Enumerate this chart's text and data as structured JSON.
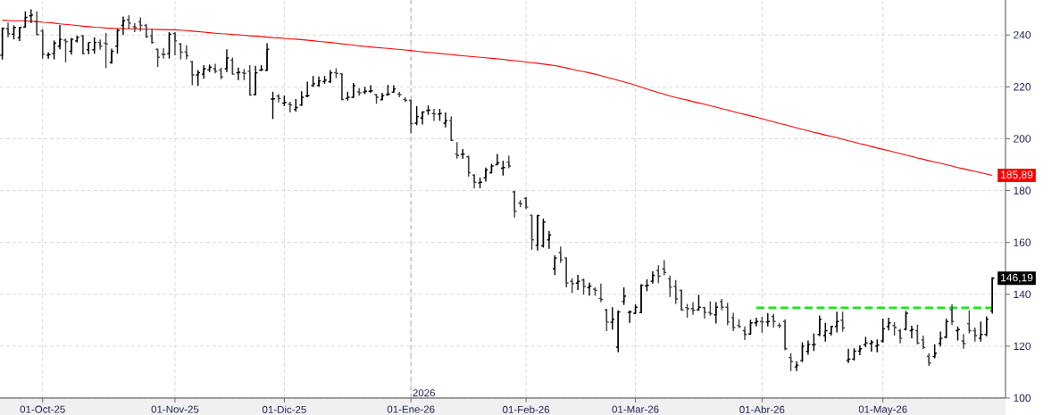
{
  "chart_data": {
    "type": "candlestick",
    "categories": [
      null,
      null,
      null,
      null,
      null,
      null,
      null,
      "01-Oct-25",
      null,
      null,
      null,
      null,
      null,
      null,
      null,
      null,
      null,
      null,
      null,
      null,
      null,
      null,
      null,
      null,
      null,
      null,
      null,
      null,
      null,
      null,
      "01-Nov-25",
      null,
      null,
      null,
      null,
      null,
      null,
      null,
      null,
      null,
      null,
      null,
      null,
      null,
      null,
      null,
      null,
      null,
      null,
      "01-Dic-25",
      null,
      null,
      null,
      null,
      null,
      null,
      null,
      null,
      null,
      null,
      null,
      null,
      null,
      null,
      null,
      null,
      null,
      null,
      null,
      null,
      null,
      "01-Ene-26",
      null,
      null,
      null,
      null,
      null,
      null,
      null,
      null,
      null,
      null,
      null,
      null,
      null,
      null,
      null,
      null,
      null,
      null,
      null,
      "01-Feb-26",
      null,
      null,
      null,
      null,
      null,
      null,
      null,
      null,
      null,
      null,
      null,
      null,
      null,
      null,
      null,
      null,
      null,
      null,
      "01-Mar-26",
      null,
      null,
      null,
      null,
      null,
      null,
      null,
      null,
      null,
      null,
      null,
      null,
      null,
      null,
      null,
      null,
      null,
      null,
      null,
      null,
      null,
      "01-Abr-26",
      null,
      null,
      null,
      null,
      null,
      null,
      null,
      null,
      null,
      null,
      null,
      null,
      null,
      null,
      null,
      null,
      null,
      null,
      null,
      null,
      "01-May-26",
      null,
      null,
      null,
      null,
      null,
      null,
      null,
      null,
      null,
      null,
      null,
      null,
      null,
      null,
      null,
      null,
      null,
      null,
      null
    ],
    "ohlc": [
      [
        232.2,
        242.9,
        230.5,
        242.5
      ],
      [
        242.5,
        244.8,
        239.1,
        240.5
      ],
      [
        240.3,
        243.7,
        238.3,
        242.9
      ],
      [
        238.9,
        243.1,
        237.7,
        242.9
      ],
      [
        243.1,
        249.1,
        242.9,
        246.8
      ],
      [
        247.4,
        249.9,
        244.6,
        247.7
      ],
      [
        245.1,
        249.1,
        239.8,
        240.2
      ],
      [
        241.5,
        242.3,
        230.9,
        232.6
      ],
      [
        232.2,
        233.4,
        230.9,
        232.4
      ],
      [
        232.8,
        237.9,
        230.6,
        236.9
      ],
      [
        235.7,
        243.9,
        234.5,
        238.3
      ],
      [
        238.0,
        238.6,
        229.5,
        237.4
      ],
      [
        233.7,
        238.9,
        232.4,
        238.3
      ],
      [
        237.7,
        239.8,
        237.1,
        239.1
      ],
      [
        239.7,
        240.0,
        232.6,
        232.8
      ],
      [
        234.3,
        237.1,
        232.6,
        237.1
      ],
      [
        234.3,
        239.1,
        232.8,
        237.1
      ],
      [
        237.1,
        238.3,
        234.3,
        235.7
      ],
      [
        236.8,
        240.8,
        227.2,
        236.6
      ],
      [
        229.4,
        234.7,
        228.9,
        233.7
      ],
      [
        235.7,
        242.5,
        232.8,
        241.7
      ],
      [
        243.7,
        247.1,
        240.0,
        245.5
      ],
      [
        245.9,
        247.6,
        242.3,
        244.6
      ],
      [
        243.2,
        244.6,
        241.1,
        242.9
      ],
      [
        245.1,
        246.8,
        241.4,
        243.7
      ],
      [
        243.7,
        244.3,
        238.9,
        239.4
      ],
      [
        239.7,
        242.3,
        236.6,
        237.1
      ],
      [
        234.5,
        234.7,
        227.7,
        231.4
      ],
      [
        232.6,
        235.0,
        230.9,
        232.5
      ],
      [
        232.8,
        241.1,
        230.9,
        240.3
      ],
      [
        240.6,
        241.1,
        232.2,
        237.7
      ],
      [
        236.6,
        236.8,
        230.6,
        233.4
      ],
      [
        233.5,
        236.0,
        230.6,
        232.0
      ],
      [
        229.7,
        230.0,
        220.6,
        224.6
      ],
      [
        224.6,
        226.5,
        220.4,
        225.5
      ],
      [
        224.9,
        228.4,
        223.1,
        227.0
      ],
      [
        226.6,
        228.6,
        225.7,
        227.6
      ],
      [
        227.0,
        228.9,
        225.2,
        226.0
      ],
      [
        226.5,
        227.4,
        222.9,
        223.8
      ],
      [
        227.0,
        234.5,
        225.7,
        231.1
      ],
      [
        230.3,
        231.3,
        224.8,
        224.9
      ],
      [
        225.4,
        227.4,
        222.6,
        225.6
      ],
      [
        225.4,
        226.9,
        222.6,
        225.2
      ],
      [
        226.0,
        228.4,
        216.6,
        216.9
      ],
      [
        217.0,
        228.1,
        216.9,
        225.4
      ],
      [
        226.5,
        228.4,
        226.1,
        226.6
      ],
      [
        226.4,
        236.8,
        226.1,
        234.5
      ],
      [
        215.3,
        218.1,
        207.6,
        215.4
      ],
      [
        216.5,
        217.2,
        214.0,
        215.5
      ],
      [
        213.7,
        216.6,
        212.6,
        214.0
      ],
      [
        213.3,
        214.3,
        210.1,
        213.0
      ],
      [
        211.3,
        215.3,
        210.5,
        212.0
      ],
      [
        213.0,
        218.3,
        212.6,
        216.0
      ],
      [
        216.5,
        222.0,
        216.0,
        216.6
      ],
      [
        220.5,
        224.2,
        220.0,
        221.2
      ],
      [
        220.5,
        224.0,
        220.0,
        222.3
      ],
      [
        222.0,
        224.2,
        221.2,
        222.6
      ],
      [
        222.0,
        226.5,
        221.5,
        225.4
      ],
      [
        225.5,
        227.2,
        223.4,
        225.2
      ],
      [
        225.0,
        225.2,
        214.9,
        215.1
      ],
      [
        215.5,
        218.1,
        214.7,
        216.0
      ],
      [
        216.0,
        221.5,
        215.8,
        220.5
      ],
      [
        218.1,
        219.5,
        216.6,
        217.7
      ],
      [
        218.0,
        220.0,
        217.2,
        218.3
      ],
      [
        218.3,
        220.6,
        217.7,
        218.5
      ],
      [
        217.0,
        217.2,
        213.5,
        216.0
      ],
      [
        215.0,
        217.7,
        214.9,
        216.6
      ],
      [
        217.0,
        220.8,
        216.6,
        217.2
      ],
      [
        218.0,
        220.6,
        217.7,
        219.2
      ],
      [
        217.2,
        218.1,
        216.0,
        217.0
      ],
      [
        215.1,
        216.0,
        214.3,
        214.8
      ],
      [
        214.8,
        215.1,
        202.1,
        205.8
      ],
      [
        206.0,
        212.6,
        205.2,
        208.6
      ],
      [
        208.0,
        210.6,
        205.5,
        210.3
      ],
      [
        210.9,
        212.8,
        209.2,
        211.0
      ],
      [
        209.7,
        211.5,
        206.9,
        209.5
      ],
      [
        209.5,
        211.5,
        206.9,
        209.7
      ],
      [
        206.0,
        210.1,
        204.4,
        207.0
      ],
      [
        207.0,
        208.6,
        199.1,
        199.4
      ],
      [
        194.1,
        198.7,
        192.3,
        193.5
      ],
      [
        194.0,
        196.0,
        192.3,
        194.1
      ],
      [
        193.0,
        193.5,
        185.4,
        186.9
      ],
      [
        186.0,
        186.3,
        180.9,
        183.2
      ],
      [
        183.0,
        185.0,
        180.9,
        183.2
      ],
      [
        184.9,
        188.9,
        183.5,
        188.0
      ],
      [
        186.9,
        190.3,
        186.6,
        189.5
      ],
      [
        190.0,
        194.1,
        189.8,
        190.7
      ],
      [
        188.6,
        191.5,
        185.8,
        188.9
      ],
      [
        191.0,
        193.4,
        188.6,
        189.5
      ],
      [
        179.5,
        179.9,
        169.6,
        172.0
      ],
      [
        175.2,
        176.3,
        173.6,
        174.9
      ],
      [
        177.0,
        177.4,
        172.9,
        173.6
      ],
      [
        170.5,
        170.6,
        157.2,
        161.0
      ],
      [
        158.9,
        170.6,
        156.9,
        170.4
      ],
      [
        158.7,
        169.2,
        158.0,
        167.9
      ],
      [
        161.0,
        164.4,
        157.6,
        162.9
      ],
      [
        149.8,
        155.0,
        147.5,
        154.0
      ],
      [
        156.1,
        158.4,
        152.1,
        153.2
      ],
      [
        154.0,
        154.2,
        142.7,
        144.3
      ],
      [
        145.0,
        146.2,
        140.5,
        144.1
      ],
      [
        144.3,
        147.5,
        141.6,
        145.0
      ],
      [
        145.5,
        146.1,
        139.9,
        143.0
      ],
      [
        142.6,
        144.5,
        139.5,
        143.2
      ],
      [
        142.0,
        142.7,
        139.5,
        141.5
      ],
      [
        138.4,
        144.1,
        137.0,
        138.0
      ],
      [
        134.0,
        134.4,
        125.8,
        129.3
      ],
      [
        129.2,
        135.0,
        126.4,
        130.4
      ],
      [
        119.6,
        133.8,
        117.6,
        133.2
      ],
      [
        137.2,
        142.7,
        135.9,
        139.3
      ],
      [
        133.0,
        133.8,
        129.0,
        133.2
      ],
      [
        132.7,
        136.1,
        132.5,
        135.0
      ],
      [
        133.0,
        143.9,
        132.7,
        143.5
      ],
      [
        143.3,
        145.8,
        141.2,
        143.5
      ],
      [
        145.0,
        148.9,
        144.1,
        147.3
      ],
      [
        149.2,
        151.2,
        144.3,
        147.0
      ],
      [
        149.8,
        153.2,
        147.3,
        148.4
      ],
      [
        146.0,
        147.2,
        139.0,
        142.7
      ],
      [
        143.0,
        145.5,
        136.3,
        138.2
      ],
      [
        141.5,
        141.8,
        133.6,
        134.0
      ],
      [
        134.9,
        136.3,
        131.0,
        134.4
      ],
      [
        134.5,
        137.0,
        132.1,
        133.8
      ],
      [
        134.0,
        139.8,
        133.8,
        135.0
      ],
      [
        134.9,
        135.2,
        130.6,
        133.0
      ],
      [
        133.0,
        137.3,
        131.8,
        132.5
      ],
      [
        132.1,
        137.0,
        128.7,
        135.0
      ],
      [
        137.2,
        138.2,
        133.8,
        135.0
      ],
      [
        135.0,
        136.7,
        128.1,
        129.3
      ],
      [
        131.0,
        132.9,
        125.8,
        127.2
      ],
      [
        128.0,
        130.4,
        127.0,
        127.5
      ],
      [
        126.0,
        127.6,
        122.4,
        124.5
      ],
      [
        124.7,
        130.2,
        124.5,
        129.0
      ],
      [
        129.0,
        131.0,
        127.6,
        129.5
      ],
      [
        129.5,
        131.3,
        125.2,
        129.3
      ],
      [
        129.3,
        132.7,
        127.6,
        129.5
      ],
      [
        131.5,
        132.5,
        127.2,
        129.5
      ],
      [
        128.0,
        129.0,
        127.0,
        127.9
      ],
      [
        129.5,
        130.4,
        118.4,
        119.0
      ],
      [
        115.6,
        117.3,
        110.4,
        114.0
      ],
      [
        112.0,
        114.2,
        110.4,
        112.7
      ],
      [
        114.4,
        121.5,
        113.9,
        120.0
      ],
      [
        118.0,
        122.2,
        116.7,
        120.7
      ],
      [
        120.5,
        124.9,
        118.1,
        120.7
      ],
      [
        124.5,
        131.8,
        123.8,
        130.4
      ],
      [
        124.1,
        129.0,
        121.8,
        126.0
      ],
      [
        125.0,
        127.9,
        124.1,
        127.6
      ],
      [
        127.6,
        133.3,
        125.3,
        129.5
      ],
      [
        130.0,
        133.3,
        125.6,
        127.0
      ],
      [
        114.5,
        119.0,
        113.5,
        115.0
      ],
      [
        115.0,
        119.2,
        114.4,
        118.1
      ],
      [
        118.1,
        120.4,
        116.5,
        119.0
      ],
      [
        120.5,
        123.6,
        119.6,
        121.3
      ],
      [
        121.0,
        122.4,
        117.9,
        121.5
      ],
      [
        120.0,
        122.6,
        117.6,
        120.4
      ],
      [
        122.0,
        130.6,
        121.3,
        126.7
      ],
      [
        127.5,
        131.0,
        126.1,
        129.0
      ],
      [
        128.0,
        129.3,
        124.1,
        127.2
      ],
      [
        126.0,
        126.7,
        121.1,
        123.0
      ],
      [
        126.5,
        133.6,
        126.1,
        132.7
      ],
      [
        126.0,
        127.9,
        123.0,
        126.4
      ],
      [
        126.0,
        128.3,
        120.7,
        121.2
      ],
      [
        122.4,
        124.1,
        118.8,
        119.5
      ],
      [
        116.1,
        117.3,
        112.4,
        113.5
      ],
      [
        116.0,
        120.7,
        115.3,
        117.3
      ],
      [
        121.0,
        125.6,
        119.9,
        123.0
      ],
      [
        123.5,
        130.6,
        123.0,
        129.5
      ],
      [
        134.0,
        136.1,
        128.1,
        129.5
      ],
      [
        126.0,
        127.6,
        122.2,
        126.4
      ],
      [
        122.0,
        124.7,
        119.0,
        121.0
      ],
      [
        128.7,
        133.8,
        124.9,
        126.0
      ],
      [
        126.0,
        127.2,
        121.8,
        124.1
      ],
      [
        123.0,
        129.5,
        121.8,
        124.5
      ],
      [
        124.5,
        131.5,
        123.8,
        130.4
      ],
      [
        133.6,
        146.6,
        132.5,
        146.19
      ]
    ],
    "colors": [
      "#000000",
      "#404040",
      "#000000",
      "#000000",
      "#000000",
      "#000000",
      "#404040",
      "#404040",
      "#000000",
      "#000000",
      "#000000",
      "#404040",
      "#000000",
      "#000000",
      "#404040",
      "#000000",
      "#000000",
      "#404040",
      "#404040",
      "#000000",
      "#000000",
      "#000000",
      "#404040",
      "#404040",
      "#404040",
      "#404040",
      "#404040",
      "#404040",
      "#404040",
      "#000000",
      "#404040",
      "#404040",
      "#404040",
      "#404040",
      "#000000",
      "#000000",
      "#000000",
      "#404040",
      "#404040",
      "#000000",
      "#404040",
      "#000000",
      "#404040",
      "#404040",
      "#000000",
      "#000000",
      "#000000",
      "#000000",
      "#404040",
      "#000000",
      "#404040",
      "#000000",
      "#000000",
      "#000000",
      "#000000",
      "#000000",
      "#000000",
      "#000000",
      "#404040",
      "#404040",
      "#000000",
      "#000000",
      "#404040",
      "#000000",
      "#000000",
      "#404040",
      "#000000",
      "#000000",
      "#000000",
      "#404040",
      "#404040",
      "#404040",
      "#000000",
      "#000000",
      "#000000",
      "#404040",
      "#000000",
      "#000000",
      "#404040",
      "#404040",
      "#000000",
      "#404040",
      "#404040",
      "#000000",
      "#000000",
      "#000000",
      "#000000",
      "#000000",
      "#404040",
      "#404040",
      "#404040",
      "#404040",
      "#404040",
      "#000000",
      "#000000",
      "#000000",
      "#000000",
      "#404040",
      "#404040",
      "#404040",
      "#000000",
      "#404040",
      "#000000",
      "#404040",
      "#404040",
      "#404040",
      "#000000",
      "#000000",
      "#000000",
      "#000000",
      "#000000",
      "#000000",
      "#000000",
      "#000000",
      "#404040",
      "#404040",
      "#404040",
      "#404040",
      "#404040",
      "#404040",
      "#404040",
      "#000000",
      "#404040",
      "#404040",
      "#000000",
      "#404040",
      "#404040",
      "#404040",
      "#404040",
      "#404040",
      "#000000",
      "#000000",
      "#404040",
      "#000000",
      "#404040",
      "#404040",
      "#404040",
      "#404040",
      "#000000",
      "#000000",
      "#000000",
      "#000000",
      "#000000",
      "#000000",
      "#000000",
      "#000000",
      "#404040",
      "#000000",
      "#000000",
      "#000000",
      "#000000",
      "#000000",
      "#000000",
      "#000000",
      "#000000",
      "#404040",
      "#404040",
      "#000000",
      "#000000",
      "#404040",
      "#404040",
      "#404040",
      "#000000",
      "#000000",
      "#000000",
      "#404040",
      "#000000",
      "#404040",
      "#404040",
      "#404040",
      "#000000",
      "#000000",
      "#000000"
    ],
    "value_labels": [
      null,
      null,
      null,
      null,
      null,
      null,
      null,
      null,
      null,
      null,
      null,
      null,
      null,
      null,
      null,
      null,
      null,
      null,
      null,
      null,
      null,
      null,
      null,
      null,
      null,
      null,
      null,
      null,
      null,
      null,
      null,
      null,
      null,
      null,
      null,
      null,
      null,
      null,
      null,
      null,
      null,
      null,
      null,
      null,
      null,
      null,
      null,
      null,
      null,
      null,
      null,
      null,
      null,
      null,
      null,
      null,
      null,
      null,
      null,
      null,
      null,
      null,
      null,
      null,
      null,
      null,
      null,
      null,
      null,
      null,
      null,
      null,
      null,
      null,
      null,
      null,
      null,
      null,
      null,
      null,
      null,
      null,
      null,
      null,
      null,
      null,
      null,
      null,
      null,
      null,
      null,
      null,
      null,
      null,
      null,
      null,
      null,
      null,
      null,
      null,
      null,
      null,
      null,
      null,
      null,
      null,
      null,
      null,
      null,
      null,
      null,
      null,
      null,
      null,
      null,
      null,
      null,
      null,
      null,
      null,
      null,
      null,
      null,
      null,
      null,
      null,
      null,
      null,
      null,
      null,
      null,
      null,
      null,
      null,
      null,
      null,
      null,
      null,
      null,
      null,
      null,
      null,
      null,
      null,
      null,
      null,
      null,
      null,
      null,
      null,
      null,
      null,
      null,
      null,
      null,
      null,
      null,
      null,
      null,
      null,
      null,
      null,
      null,
      null,
      null,
      null,
      null,
      null,
      null,
      null,
      null,
      null,
      "146,19"
    ],
    "series": [
      {
        "type": "line",
        "color": "#ff0000",
        "values": [
          245.7,
          245.6,
          245.5,
          245.5,
          245.4,
          245.3,
          245.2,
          244.9,
          244.8,
          244.6,
          244.3,
          244.1,
          243.9,
          243.7,
          243.4,
          243.2,
          243.0,
          242.9,
          242.7,
          242.6,
          242.5,
          242.5,
          242.4,
          242.3,
          242.3,
          242.2,
          242.2,
          242.1,
          242.1,
          242.0,
          242.0,
          241.9,
          241.7,
          241.5,
          241.3,
          241.1,
          240.9,
          240.7,
          240.5,
          240.4,
          240.2,
          240.1,
          239.9,
          239.7,
          239.6,
          239.4,
          239.2,
          239.0,
          238.9,
          238.7,
          238.5,
          238.4,
          238.2,
          238.0,
          237.8,
          237.5,
          237.3,
          237.1,
          236.9,
          236.6,
          236.4,
          236.1,
          235.8,
          235.6,
          235.4,
          235.2,
          235.0,
          234.8,
          234.6,
          234.4,
          234.2,
          234.0,
          233.7,
          233.5,
          233.3,
          233.1,
          232.9,
          232.7,
          232.5,
          232.2,
          232.0,
          231.8,
          231.6,
          231.4,
          231.2,
          231.0,
          230.8,
          230.6,
          230.3,
          230.1,
          229.9,
          229.6,
          229.3,
          229.1,
          228.8,
          228.5,
          228.2,
          227.8,
          227.3,
          226.8,
          226.3,
          225.9,
          225.4,
          224.9,
          224.3,
          223.7,
          223.1,
          222.5,
          221.9,
          221.3,
          220.6,
          219.9,
          219.2,
          218.5,
          217.8,
          217.2,
          216.5,
          215.9,
          215.4,
          214.9,
          214.3,
          213.8,
          213.3,
          212.7,
          212.2,
          211.6,
          211.1,
          210.5,
          209.9,
          209.4,
          208.8,
          208.3,
          207.7,
          207.1,
          206.5,
          205.9,
          205.4,
          204.8,
          204.2,
          203.6,
          203.1,
          202.5,
          202.0,
          201.4,
          200.9,
          200.4,
          199.8,
          199.2,
          198.7,
          198.1,
          197.6,
          197.0,
          196.4,
          195.9,
          195.4,
          194.8,
          194.3,
          193.7,
          193.2,
          192.6,
          192.1,
          191.5,
          191.0,
          190.5,
          190.0,
          189.5,
          188.9,
          188.4,
          187.9,
          187.4,
          186.9,
          186.4,
          185.89
        ],
        "value_labels": [
          null,
          null,
          null,
          null,
          null,
          null,
          null,
          null,
          null,
          null,
          null,
          null,
          null,
          null,
          null,
          null,
          null,
          null,
          null,
          null,
          null,
          null,
          null,
          null,
          null,
          null,
          null,
          null,
          null,
          null,
          null,
          null,
          null,
          null,
          null,
          null,
          null,
          null,
          null,
          null,
          null,
          null,
          null,
          null,
          null,
          null,
          null,
          null,
          null,
          null,
          null,
          null,
          null,
          null,
          null,
          null,
          null,
          null,
          null,
          null,
          null,
          null,
          null,
          null,
          null,
          null,
          null,
          null,
          null,
          null,
          null,
          null,
          null,
          null,
          null,
          null,
          null,
          null,
          null,
          null,
          null,
          null,
          null,
          null,
          null,
          null,
          null,
          null,
          null,
          null,
          null,
          null,
          null,
          null,
          null,
          null,
          null,
          null,
          null,
          null,
          null,
          null,
          null,
          null,
          null,
          null,
          null,
          null,
          null,
          null,
          null,
          null,
          null,
          null,
          null,
          null,
          null,
          null,
          null,
          null,
          null,
          null,
          null,
          null,
          null,
          null,
          null,
          null,
          null,
          null,
          null,
          null,
          null,
          null,
          null,
          null,
          null,
          null,
          null,
          null,
          null,
          null,
          null,
          null,
          null,
          null,
          null,
          null,
          null,
          null,
          null,
          null,
          null,
          null,
          null,
          null,
          null,
          null,
          null,
          null,
          null,
          null,
          null,
          null,
          null,
          null,
          null,
          null,
          null,
          null,
          null,
          null,
          "185,89"
        ]
      },
      {
        "type": "line",
        "color": "#19e619",
        "line_style": "dashed",
        "values": [
          null,
          null,
          null,
          null,
          null,
          null,
          null,
          null,
          null,
          null,
          null,
          null,
          null,
          null,
          null,
          null,
          null,
          null,
          null,
          null,
          null,
          null,
          null,
          null,
          null,
          null,
          null,
          null,
          null,
          null,
          null,
          null,
          null,
          null,
          null,
          null,
          null,
          null,
          null,
          null,
          null,
          null,
          null,
          null,
          null,
          null,
          null,
          null,
          null,
          null,
          null,
          null,
          null,
          null,
          null,
          null,
          null,
          null,
          null,
          null,
          null,
          null,
          null,
          null,
          null,
          null,
          null,
          null,
          null,
          null,
          null,
          null,
          null,
          null,
          null,
          null,
          null,
          null,
          null,
          null,
          null,
          null,
          null,
          null,
          null,
          null,
          null,
          null,
          null,
          null,
          null,
          null,
          null,
          null,
          null,
          null,
          null,
          null,
          null,
          null,
          null,
          null,
          null,
          null,
          null,
          null,
          null,
          null,
          null,
          null,
          null,
          null,
          null,
          null,
          null,
          null,
          null,
          null,
          null,
          null,
          null,
          null,
          null,
          null,
          null,
          null,
          null,
          null,
          null,
          null,
          null,
          134.8,
          134.8,
          134.8,
          134.8,
          134.8,
          134.8,
          134.8,
          134.8,
          134.8,
          134.8,
          134.8,
          134.8,
          134.8,
          134.8,
          134.8,
          134.8,
          134.8,
          134.8,
          134.8,
          134.8,
          134.8,
          134.8,
          134.8,
          134.8,
          134.8,
          134.8,
          134.8,
          134.8,
          134.8,
          134.8,
          134.8,
          134.8,
          134.8,
          134.8,
          134.8,
          134.8,
          134.8,
          134.8,
          134.8,
          134.8,
          134.8,
          134.8
        ]
      }
    ],
    "ylim": [
      100,
      253.5
    ],
    "yticks": [
      100,
      120,
      140,
      160,
      180,
      200,
      220,
      240
    ],
    "grid": true,
    "ref_lines": [
      {
        "axis": "x",
        "value": "01-Ene-26",
        "label": "2026",
        "color": "#a6a6a6",
        "line_style": "dashed"
      }
    ]
  }
}
